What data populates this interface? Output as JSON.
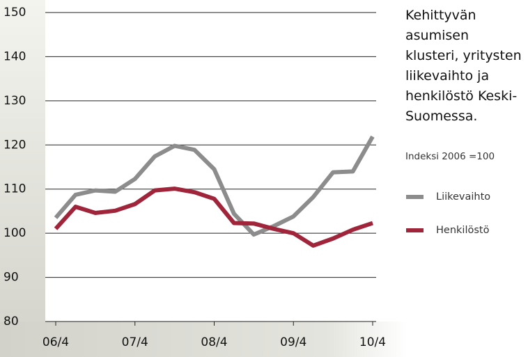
{
  "chart_data": {
    "type": "line",
    "title": "Kehittyvän asumisen klusteri, yritysten liikevaihto ja henkilöstö Keski-Suomessa.",
    "subtitle": "Indeksi 2006 =100",
    "categories": [
      "06/4",
      null,
      null,
      null,
      "07/4",
      null,
      null,
      null,
      "08/4",
      null,
      null,
      null,
      "09/4",
      null,
      null,
      null,
      "10/4"
    ],
    "series": [
      {
        "name": "Liikevaihto",
        "color": "#8c8c8c",
        "values": [
          103.5,
          108.7,
          109.7,
          109.4,
          112.3,
          117.4,
          119.8,
          118.9,
          114.5,
          104.4,
          99.7,
          101.6,
          103.8,
          108.2,
          113.8,
          114,
          121.9
        ]
      },
      {
        "name": "Henkilöstö",
        "color": "#a0243a",
        "values": [
          101,
          106,
          104.6,
          105.1,
          106.6,
          109.7,
          110.1,
          109.3,
          107.8,
          102.3,
          102.2,
          101,
          100,
          97.2,
          98.8,
          100.8,
          102.3
        ]
      }
    ],
    "ylim": [
      80,
      150
    ],
    "yticks": [
      80,
      90,
      100,
      110,
      120,
      130,
      140,
      150
    ],
    "grid": true
  }
}
